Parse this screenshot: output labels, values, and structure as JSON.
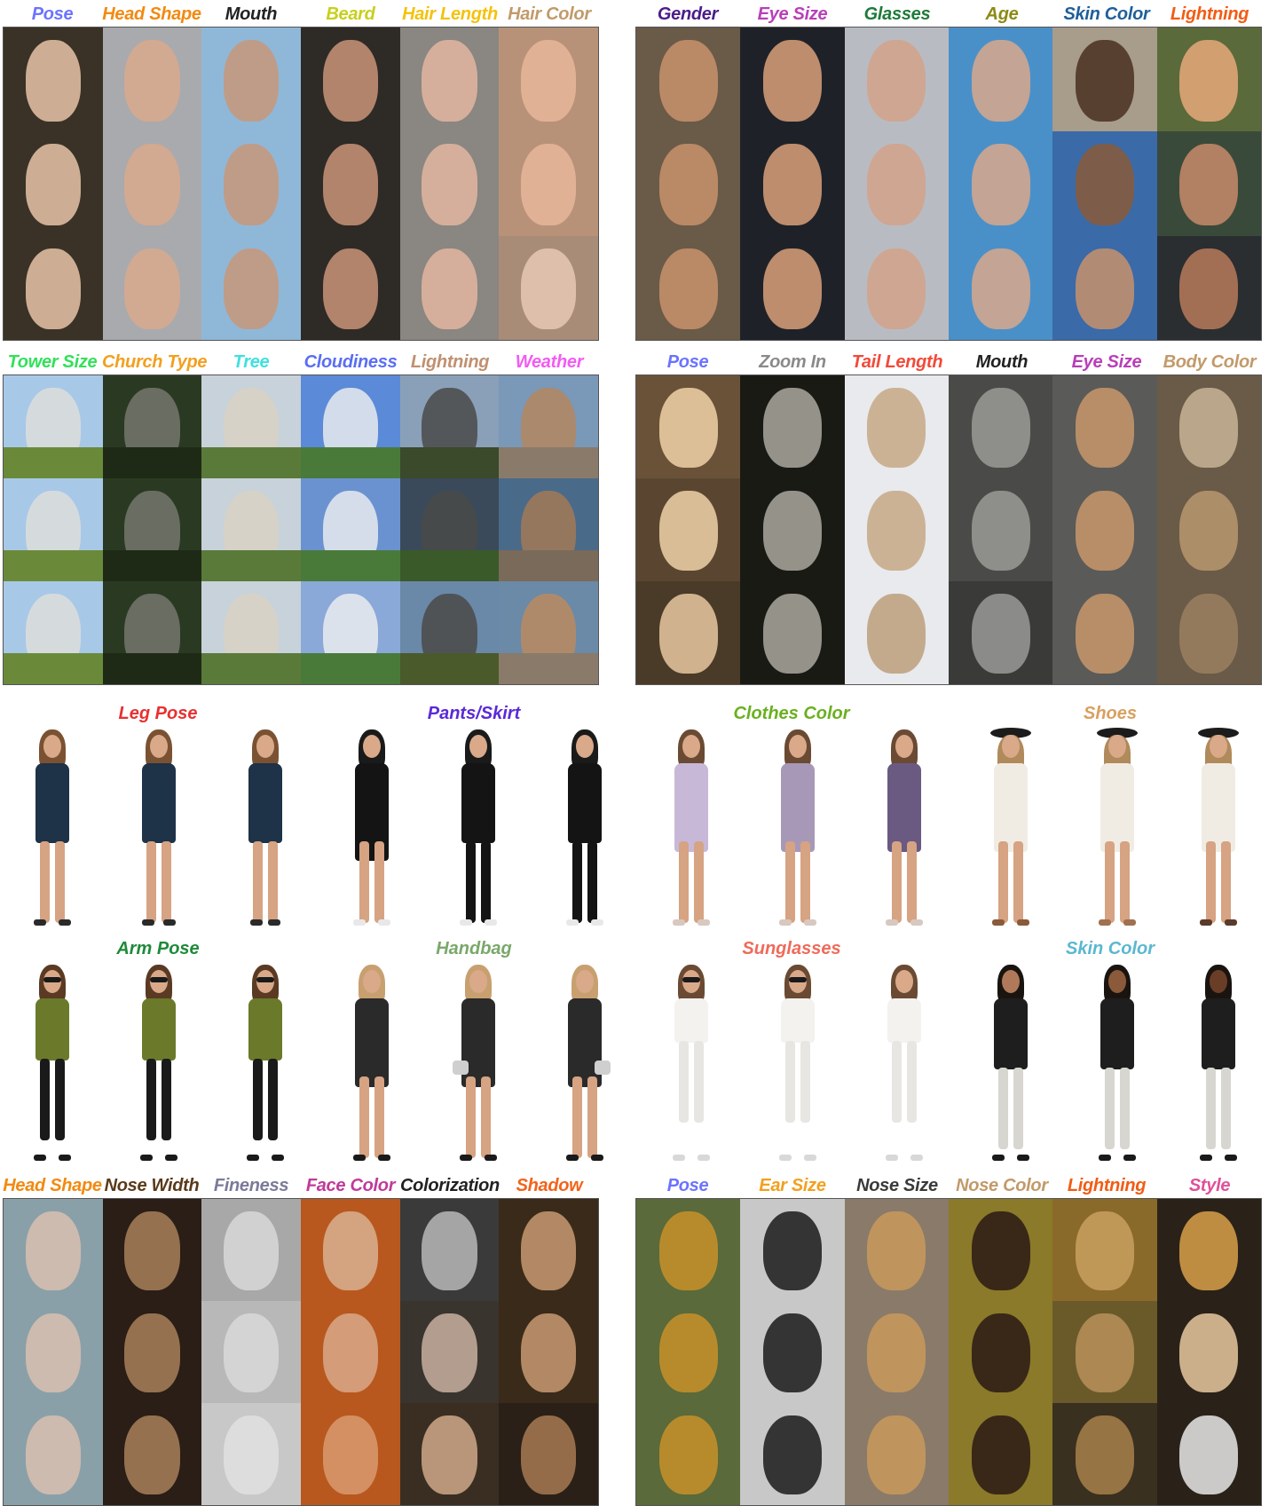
{
  "faces_panel": {
    "labels": [
      {
        "text": "Pose",
        "color": "#6b73ff"
      },
      {
        "text": "Head Shape",
        "color": "#f28a10"
      },
      {
        "text": "Mouth",
        "color": "#222222"
      },
      {
        "text": "Beard",
        "color": "#c8cf1c"
      },
      {
        "text": "Hair Length",
        "color": "#f4c20d"
      },
      {
        "text": "Hair Color",
        "color": "#c29a6a"
      }
    ]
  },
  "faces2_panel": {
    "labels": [
      {
        "text": "Gender",
        "color": "#4b1d8a"
      },
      {
        "text": "Eye Size",
        "color": "#b83fb8"
      },
      {
        "text": "Glasses",
        "color": "#1f7a3a"
      },
      {
        "text": "Age",
        "color": "#8c8a14"
      },
      {
        "text": "Skin Color",
        "color": "#1f5f9a"
      },
      {
        "text": "Lightning",
        "color": "#f25c14"
      }
    ]
  },
  "church_panel": {
    "labels": [
      {
        "text": "Tower Size",
        "color": "#33e05a"
      },
      {
        "text": "Church Type",
        "color": "#f2a020"
      },
      {
        "text": "Tree",
        "color": "#3fe0e0"
      },
      {
        "text": "Cloudiness",
        "color": "#5a6ef2"
      },
      {
        "text": "Lightning",
        "color": "#c09070"
      },
      {
        "text": "Weather",
        "color": "#f25cf2"
      }
    ]
  },
  "cat_panel": {
    "labels": [
      {
        "text": "Pose",
        "color": "#6b73ff"
      },
      {
        "text": "Zoom In",
        "color": "#8a8a8a"
      },
      {
        "text": "Tail Length",
        "color": "#f24a3a"
      },
      {
        "text": "Mouth",
        "color": "#222222"
      },
      {
        "text": "Eye Size",
        "color": "#b83fb8"
      },
      {
        "text": "Body Color",
        "color": "#c29a6a"
      }
    ]
  },
  "fashion_row1": {
    "labels": [
      {
        "text": "Leg Pose",
        "color": "#e83030"
      },
      {
        "text": "Pants/Skirt",
        "color": "#5a2ad8"
      },
      {
        "text": "Clothes Color",
        "color": "#6ab020"
      },
      {
        "text": "Shoes",
        "color": "#d8a060"
      }
    ]
  },
  "fashion_row2": {
    "labels": [
      {
        "text": "Arm Pose",
        "color": "#1f8a3a"
      },
      {
        "text": "Handbag",
        "color": "#7aa86a"
      },
      {
        "text": "Sunglasses",
        "color": "#f06a5a"
      },
      {
        "text": "Skin Color",
        "color": "#5ab8d0"
      }
    ]
  },
  "art_panel": {
    "labels": [
      {
        "text": "Head Shape",
        "color": "#f28a10"
      },
      {
        "text": "Nose Width",
        "color": "#5a3a1a"
      },
      {
        "text": "Fineness",
        "color": "#7a7a9a"
      },
      {
        "text": "Face Color",
        "color": "#c03a9a"
      },
      {
        "text": "Colorization",
        "color": "#222222"
      },
      {
        "text": "Shadow",
        "color": "#f2641a"
      }
    ]
  },
  "animal_panel": {
    "labels": [
      {
        "text": "Pose",
        "color": "#6b73ff"
      },
      {
        "text": "Ear Size",
        "color": "#f2a020"
      },
      {
        "text": "Nose Size",
        "color": "#3a3a3a"
      },
      {
        "text": "Nose Color",
        "color": "#c29a6a"
      },
      {
        "text": "Lightning",
        "color": "#f25c14"
      },
      {
        "text": "Style",
        "color": "#e0509a"
      }
    ]
  }
}
